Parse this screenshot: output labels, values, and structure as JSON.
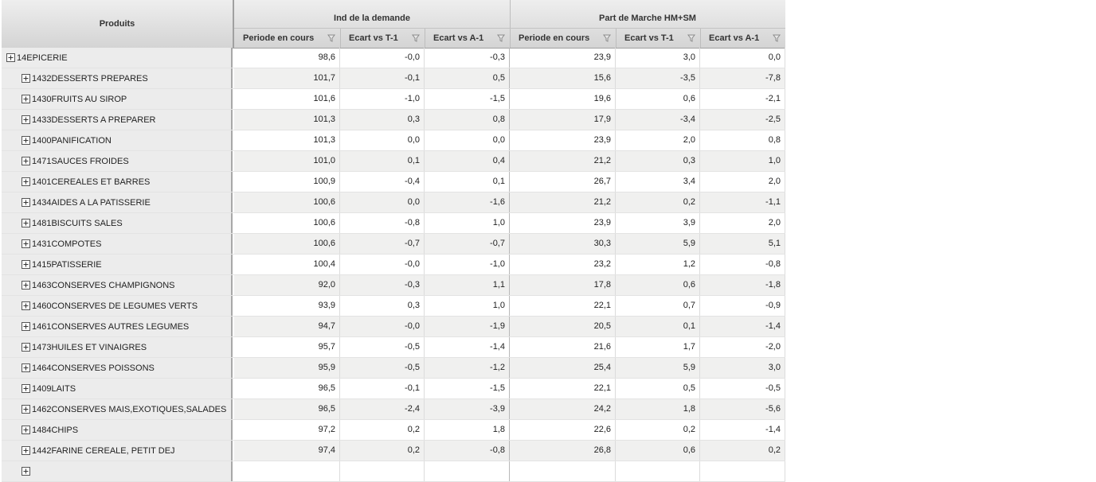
{
  "header": {
    "produits_label": "Produits",
    "group1_label": "Ind de la demande",
    "group2_label": "Part de Marche HM+SM",
    "columns": [
      "Periode en cours",
      "Ecart vs T-1",
      "Ecart vs A-1",
      "Periode en cours",
      "Ecart vs T-1",
      "Ecart vs A-1"
    ]
  },
  "rows": [
    {
      "label": "14EPICERIE",
      "level": 0,
      "values": [
        "98,6",
        "-0,0",
        "-0,3",
        "23,9",
        "3,0",
        "0,0"
      ]
    },
    {
      "label": "1432DESSERTS PREPARES",
      "level": 1,
      "values": [
        "101,7",
        "-0,1",
        "0,5",
        "15,6",
        "-3,5",
        "-7,8"
      ]
    },
    {
      "label": "1430FRUITS AU SIROP",
      "level": 1,
      "values": [
        "101,6",
        "-1,0",
        "-1,5",
        "19,6",
        "0,6",
        "-2,1"
      ]
    },
    {
      "label": "1433DESSERTS A PREPARER",
      "level": 1,
      "values": [
        "101,3",
        "0,3",
        "0,8",
        "17,9",
        "-3,4",
        "-2,5"
      ]
    },
    {
      "label": "1400PANIFICATION",
      "level": 1,
      "values": [
        "101,3",
        "0,0",
        "0,0",
        "23,9",
        "2,0",
        "0,8"
      ]
    },
    {
      "label": "1471SAUCES FROIDES",
      "level": 1,
      "values": [
        "101,0",
        "0,1",
        "0,4",
        "21,2",
        "0,3",
        "1,0"
      ]
    },
    {
      "label": "1401CEREALES ET BARRES",
      "level": 1,
      "values": [
        "100,9",
        "-0,4",
        "0,1",
        "26,7",
        "3,4",
        "2,0"
      ]
    },
    {
      "label": "1434AIDES A LA PATISSERIE",
      "level": 1,
      "values": [
        "100,6",
        "0,0",
        "-1,6",
        "21,2",
        "0,2",
        "-1,1"
      ]
    },
    {
      "label": "1481BISCUITS SALES",
      "level": 1,
      "values": [
        "100,6",
        "-0,8",
        "1,0",
        "23,9",
        "3,9",
        "2,0"
      ]
    },
    {
      "label": "1431COMPOTES",
      "level": 1,
      "values": [
        "100,6",
        "-0,7",
        "-0,7",
        "30,3",
        "5,9",
        "5,1"
      ]
    },
    {
      "label": "1415PATISSERIE",
      "level": 1,
      "values": [
        "100,4",
        "-0,0",
        "-1,0",
        "23,2",
        "1,2",
        "-0,8"
      ]
    },
    {
      "label": "1463CONSERVES CHAMPIGNONS",
      "level": 1,
      "values": [
        "92,0",
        "-0,3",
        "1,1",
        "17,8",
        "0,6",
        "-1,8"
      ]
    },
    {
      "label": "1460CONSERVES DE LEGUMES VERTS",
      "level": 1,
      "values": [
        "93,9",
        "0,3",
        "1,0",
        "22,1",
        "0,7",
        "-0,9"
      ]
    },
    {
      "label": "1461CONSERVES AUTRES LEGUMES",
      "level": 1,
      "values": [
        "94,7",
        "-0,0",
        "-1,9",
        "20,5",
        "0,1",
        "-1,4"
      ]
    },
    {
      "label": "1473HUILES ET VINAIGRES",
      "level": 1,
      "values": [
        "95,7",
        "-0,5",
        "-1,4",
        "21,6",
        "1,7",
        "-2,0"
      ]
    },
    {
      "label": "1464CONSERVES POISSONS",
      "level": 1,
      "values": [
        "95,9",
        "-0,5",
        "-1,2",
        "25,4",
        "5,9",
        "3,0"
      ]
    },
    {
      "label": "1409LAITS",
      "level": 1,
      "values": [
        "96,5",
        "-0,1",
        "-1,5",
        "22,1",
        "0,5",
        "-0,5"
      ]
    },
    {
      "label": "1462CONSERVES MAIS,EXOTIQUES,SALADES",
      "level": 1,
      "values": [
        "96,5",
        "-2,4",
        "-3,9",
        "24,2",
        "1,8",
        "-5,6"
      ]
    },
    {
      "label": "1484CHIPS",
      "level": 1,
      "values": [
        "97,2",
        "0,2",
        "1,8",
        "22,6",
        "0,2",
        "-1,4"
      ]
    },
    {
      "label": "1442FARINE CEREALE, PETIT DEJ",
      "level": 1,
      "values": [
        "97,4",
        "0,2",
        "-0,8",
        "26,8",
        "0,6",
        "0,2"
      ]
    },
    {
      "label": "",
      "level": 1,
      "values": [
        "",
        "",
        "",
        "",
        "",
        ""
      ]
    }
  ]
}
